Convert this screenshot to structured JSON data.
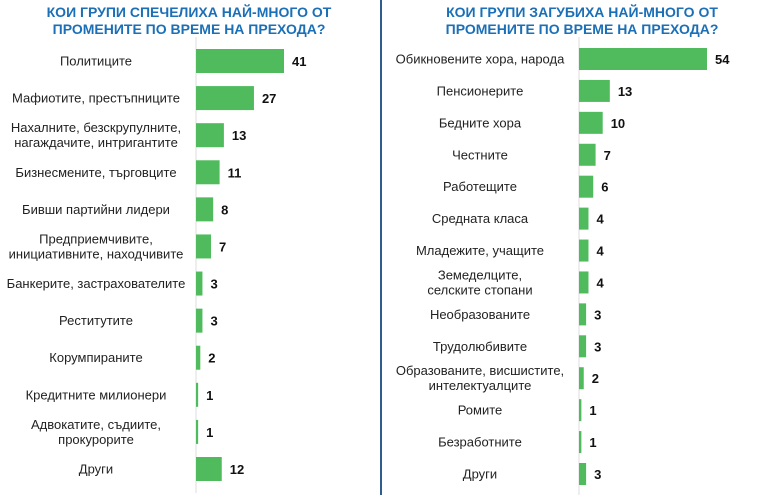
{
  "colors": {
    "bar": "#4fbb5d",
    "title": "#1a6fb7",
    "divider": "#2f5d8c"
  },
  "chart_data": [
    {
      "type": "bar",
      "orientation": "horizontal",
      "title_lines": [
        "КОИ ГРУПИ СПЕЧЕЛИХА НАЙ-МНОГО ОТ",
        "ПРОМЕНИТЕ ПО ВРЕМЕ НА ПРЕХОДА?"
      ],
      "categories": [
        [
          "Политиците"
        ],
        [
          "Мафиотите, престъпниците"
        ],
        [
          "Нахалните, безскрупулните,",
          "нагаждачите, интригантите"
        ],
        [
          "Бизнесмените, търговците"
        ],
        [
          "Бивши партийни лидери"
        ],
        [
          "Предприемчивите,",
          "инициативните, находчивите"
        ],
        [
          "Банкерите, застрахователите"
        ],
        [
          "Реститутите"
        ],
        [
          "Корумпираните"
        ],
        [
          "Кредитните милионери"
        ],
        [
          "Адвокатите, съдиите,",
          "прокурорите"
        ],
        [
          "Други"
        ]
      ],
      "values": [
        41,
        27,
        13,
        11,
        8,
        7,
        3,
        3,
        2,
        1,
        1,
        12
      ],
      "data_labels": [
        "41",
        "27",
        "13",
        "11",
        "8",
        "7",
        "3",
        "3",
        "2",
        "1",
        "1",
        "12"
      ]
    },
    {
      "type": "bar",
      "orientation": "horizontal",
      "title_lines": [
        "КОИ ГРУПИ ЗАГУБИХА НАЙ-МНОГО ОТ",
        "ПРОМЕНИТЕ ПО ВРЕМЕ НА ПРЕХОДА?"
      ],
      "categories": [
        [
          "Обикновените хора, народа"
        ],
        [
          "Пенсионерите"
        ],
        [
          "Бедните хора"
        ],
        [
          "Честните"
        ],
        [
          "Работещите"
        ],
        [
          "Средната класа"
        ],
        [
          "Младежите, учащите"
        ],
        [
          "Земеделците,",
          "селските стопани"
        ],
        [
          "Необразованите"
        ],
        [
          "Трудолюбивите"
        ],
        [
          "Образованите, висшистите,",
          "интелектуалците"
        ],
        [
          "Ромите"
        ],
        [
          "Безработните"
        ],
        [
          "Други"
        ]
      ],
      "values": [
        54,
        13,
        10,
        7,
        6,
        4,
        4,
        4,
        3,
        3,
        2,
        1,
        1,
        3
      ],
      "data_labels": [
        "54",
        "13",
        "10",
        "7",
        "6",
        "4",
        "4",
        "4",
        "3",
        "3",
        "2",
        "1",
        "1",
        "3"
      ]
    }
  ]
}
